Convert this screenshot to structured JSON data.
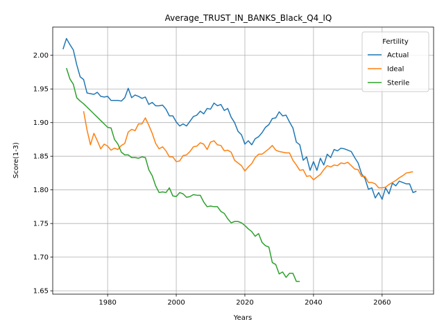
{
  "chart_data": {
    "type": "line",
    "title": "Average_TRUST_IN_BANKS_Black_Q4_IQ",
    "xlabel": "Years",
    "ylabel": "Score(1-3)",
    "xlim": [
      1964,
      2075
    ],
    "ylim": [
      1.645,
      2.042
    ],
    "xticks": [
      1980,
      2000,
      2020,
      2040,
      2060
    ],
    "yticks": [
      1.65,
      1.7,
      1.75,
      1.8,
      1.85,
      1.9,
      1.95,
      2.0
    ],
    "xtick_labels": [
      "1980",
      "2000",
      "2020",
      "2040",
      "2060"
    ],
    "ytick_labels": [
      "1.65",
      "1.70",
      "1.75",
      "1.80",
      "1.85",
      "1.90",
      "1.95",
      "2.00"
    ],
    "grid": true,
    "legend": {
      "title": "Fertility",
      "position": "top-right"
    },
    "series": [
      {
        "name": "Actual",
        "color": "#1f77b4",
        "x_start": 1967,
        "values": [
          2.009,
          2.025,
          2.016,
          2.008,
          1.986,
          1.968,
          1.964,
          1.944,
          1.943,
          1.942,
          1.945,
          1.939,
          1.938,
          1.939,
          1.933,
          1.933,
          1.933,
          1.932,
          1.937,
          1.951,
          1.937,
          1.941,
          1.939,
          1.936,
          1.938,
          1.927,
          1.93,
          1.925,
          1.925,
          1.926,
          1.92,
          1.91,
          1.91,
          1.901,
          1.895,
          1.898,
          1.895,
          1.902,
          1.909,
          1.911,
          1.917,
          1.913,
          1.921,
          1.92,
          1.929,
          1.925,
          1.927,
          1.918,
          1.921,
          1.908,
          1.9,
          1.887,
          1.882,
          1.868,
          1.873,
          1.867,
          1.876,
          1.879,
          1.885,
          1.893,
          1.897,
          1.906,
          1.907,
          1.916,
          1.91,
          1.911,
          1.901,
          1.892,
          1.871,
          1.867,
          1.844,
          1.849,
          1.829,
          1.842,
          1.829,
          1.847,
          1.837,
          1.853,
          1.848,
          1.86,
          1.858,
          1.862,
          1.861,
          1.859,
          1.857,
          1.848,
          1.84,
          1.824,
          1.817,
          1.801,
          1.803,
          1.788,
          1.796,
          1.786,
          1.803,
          1.794,
          1.81,
          1.806,
          1.813,
          1.811,
          1.809,
          1.809,
          1.796,
          1.798
        ]
      },
      {
        "name": "Ideal",
        "color": "#ff7f0e",
        "x_start": 1973,
        "values": [
          1.917,
          1.889,
          1.867,
          1.884,
          1.873,
          1.861,
          1.868,
          1.865,
          1.859,
          1.862,
          1.86,
          1.866,
          1.869,
          1.886,
          1.89,
          1.888,
          1.898,
          1.898,
          1.907,
          1.896,
          1.884,
          1.869,
          1.861,
          1.864,
          1.858,
          1.849,
          1.849,
          1.842,
          1.843,
          1.851,
          1.852,
          1.857,
          1.864,
          1.865,
          1.87,
          1.868,
          1.86,
          1.871,
          1.873,
          1.867,
          1.866,
          1.858,
          1.859,
          1.856,
          1.844,
          1.84,
          1.836,
          1.828,
          1.834,
          1.839,
          1.848,
          1.853,
          1.853,
          1.857,
          1.861,
          1.866,
          1.859,
          1.857,
          1.856,
          1.855,
          1.855,
          1.844,
          1.837,
          1.829,
          1.83,
          1.82,
          1.821,
          1.815,
          1.819,
          1.823,
          1.83,
          1.836,
          1.834,
          1.837,
          1.836,
          1.84,
          1.839,
          1.841,
          1.836,
          1.831,
          1.83,
          1.82,
          1.82,
          1.811,
          1.811,
          1.809,
          1.803,
          1.803,
          1.804,
          1.808,
          1.811,
          1.814,
          1.818,
          1.821,
          1.825,
          1.826,
          1.827
        ]
      },
      {
        "name": "Sterile",
        "color": "#2ca02c",
        "x_start": 1968,
        "values": [
          1.981,
          1.965,
          1.957,
          1.937,
          1.932,
          1.928,
          1.923,
          1.918,
          1.913,
          1.908,
          1.903,
          1.898,
          1.893,
          1.892,
          1.875,
          1.868,
          1.856,
          1.852,
          1.852,
          1.848,
          1.848,
          1.847,
          1.849,
          1.848,
          1.83,
          1.821,
          1.806,
          1.796,
          1.797,
          1.796,
          1.803,
          1.791,
          1.79,
          1.796,
          1.794,
          1.789,
          1.79,
          1.793,
          1.792,
          1.792,
          1.782,
          1.775,
          1.776,
          1.775,
          1.775,
          1.768,
          1.765,
          1.757,
          1.751,
          1.753,
          1.753,
          1.751,
          1.747,
          1.742,
          1.738,
          1.731,
          1.735,
          1.722,
          1.717,
          1.715,
          1.692,
          1.689,
          1.675,
          1.678,
          1.67,
          1.676,
          1.676,
          1.664,
          1.664
        ]
      }
    ]
  }
}
